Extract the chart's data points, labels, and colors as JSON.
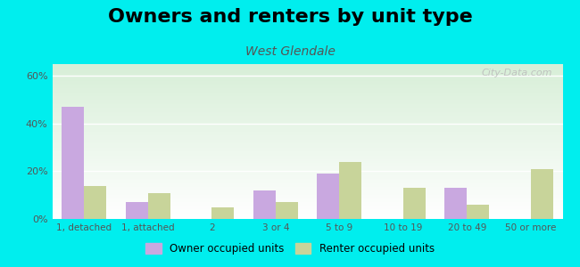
{
  "title": "Owners and renters by unit type",
  "subtitle": "West Glendale",
  "categories": [
    "1, detached",
    "1, attached",
    "2",
    "3 or 4",
    "5 to 9",
    "10 to 19",
    "20 to 49",
    "50 or more"
  ],
  "owner_values": [
    47,
    7,
    0,
    12,
    19,
    0,
    13,
    0
  ],
  "renter_values": [
    14,
    11,
    5,
    7,
    24,
    13,
    6,
    21
  ],
  "owner_color": "#c9a8e0",
  "renter_color": "#c8d49a",
  "background_color": "#00eeee",
  "ylim": [
    0,
    65
  ],
  "yticks": [
    0,
    20,
    40,
    60
  ],
  "ytick_labels": [
    "0%",
    "20%",
    "40%",
    "60%"
  ],
  "bar_width": 0.35,
  "title_fontsize": 16,
  "subtitle_fontsize": 10,
  "legend_owner": "Owner occupied units",
  "legend_renter": "Renter occupied units",
  "watermark": "City-Data.com"
}
